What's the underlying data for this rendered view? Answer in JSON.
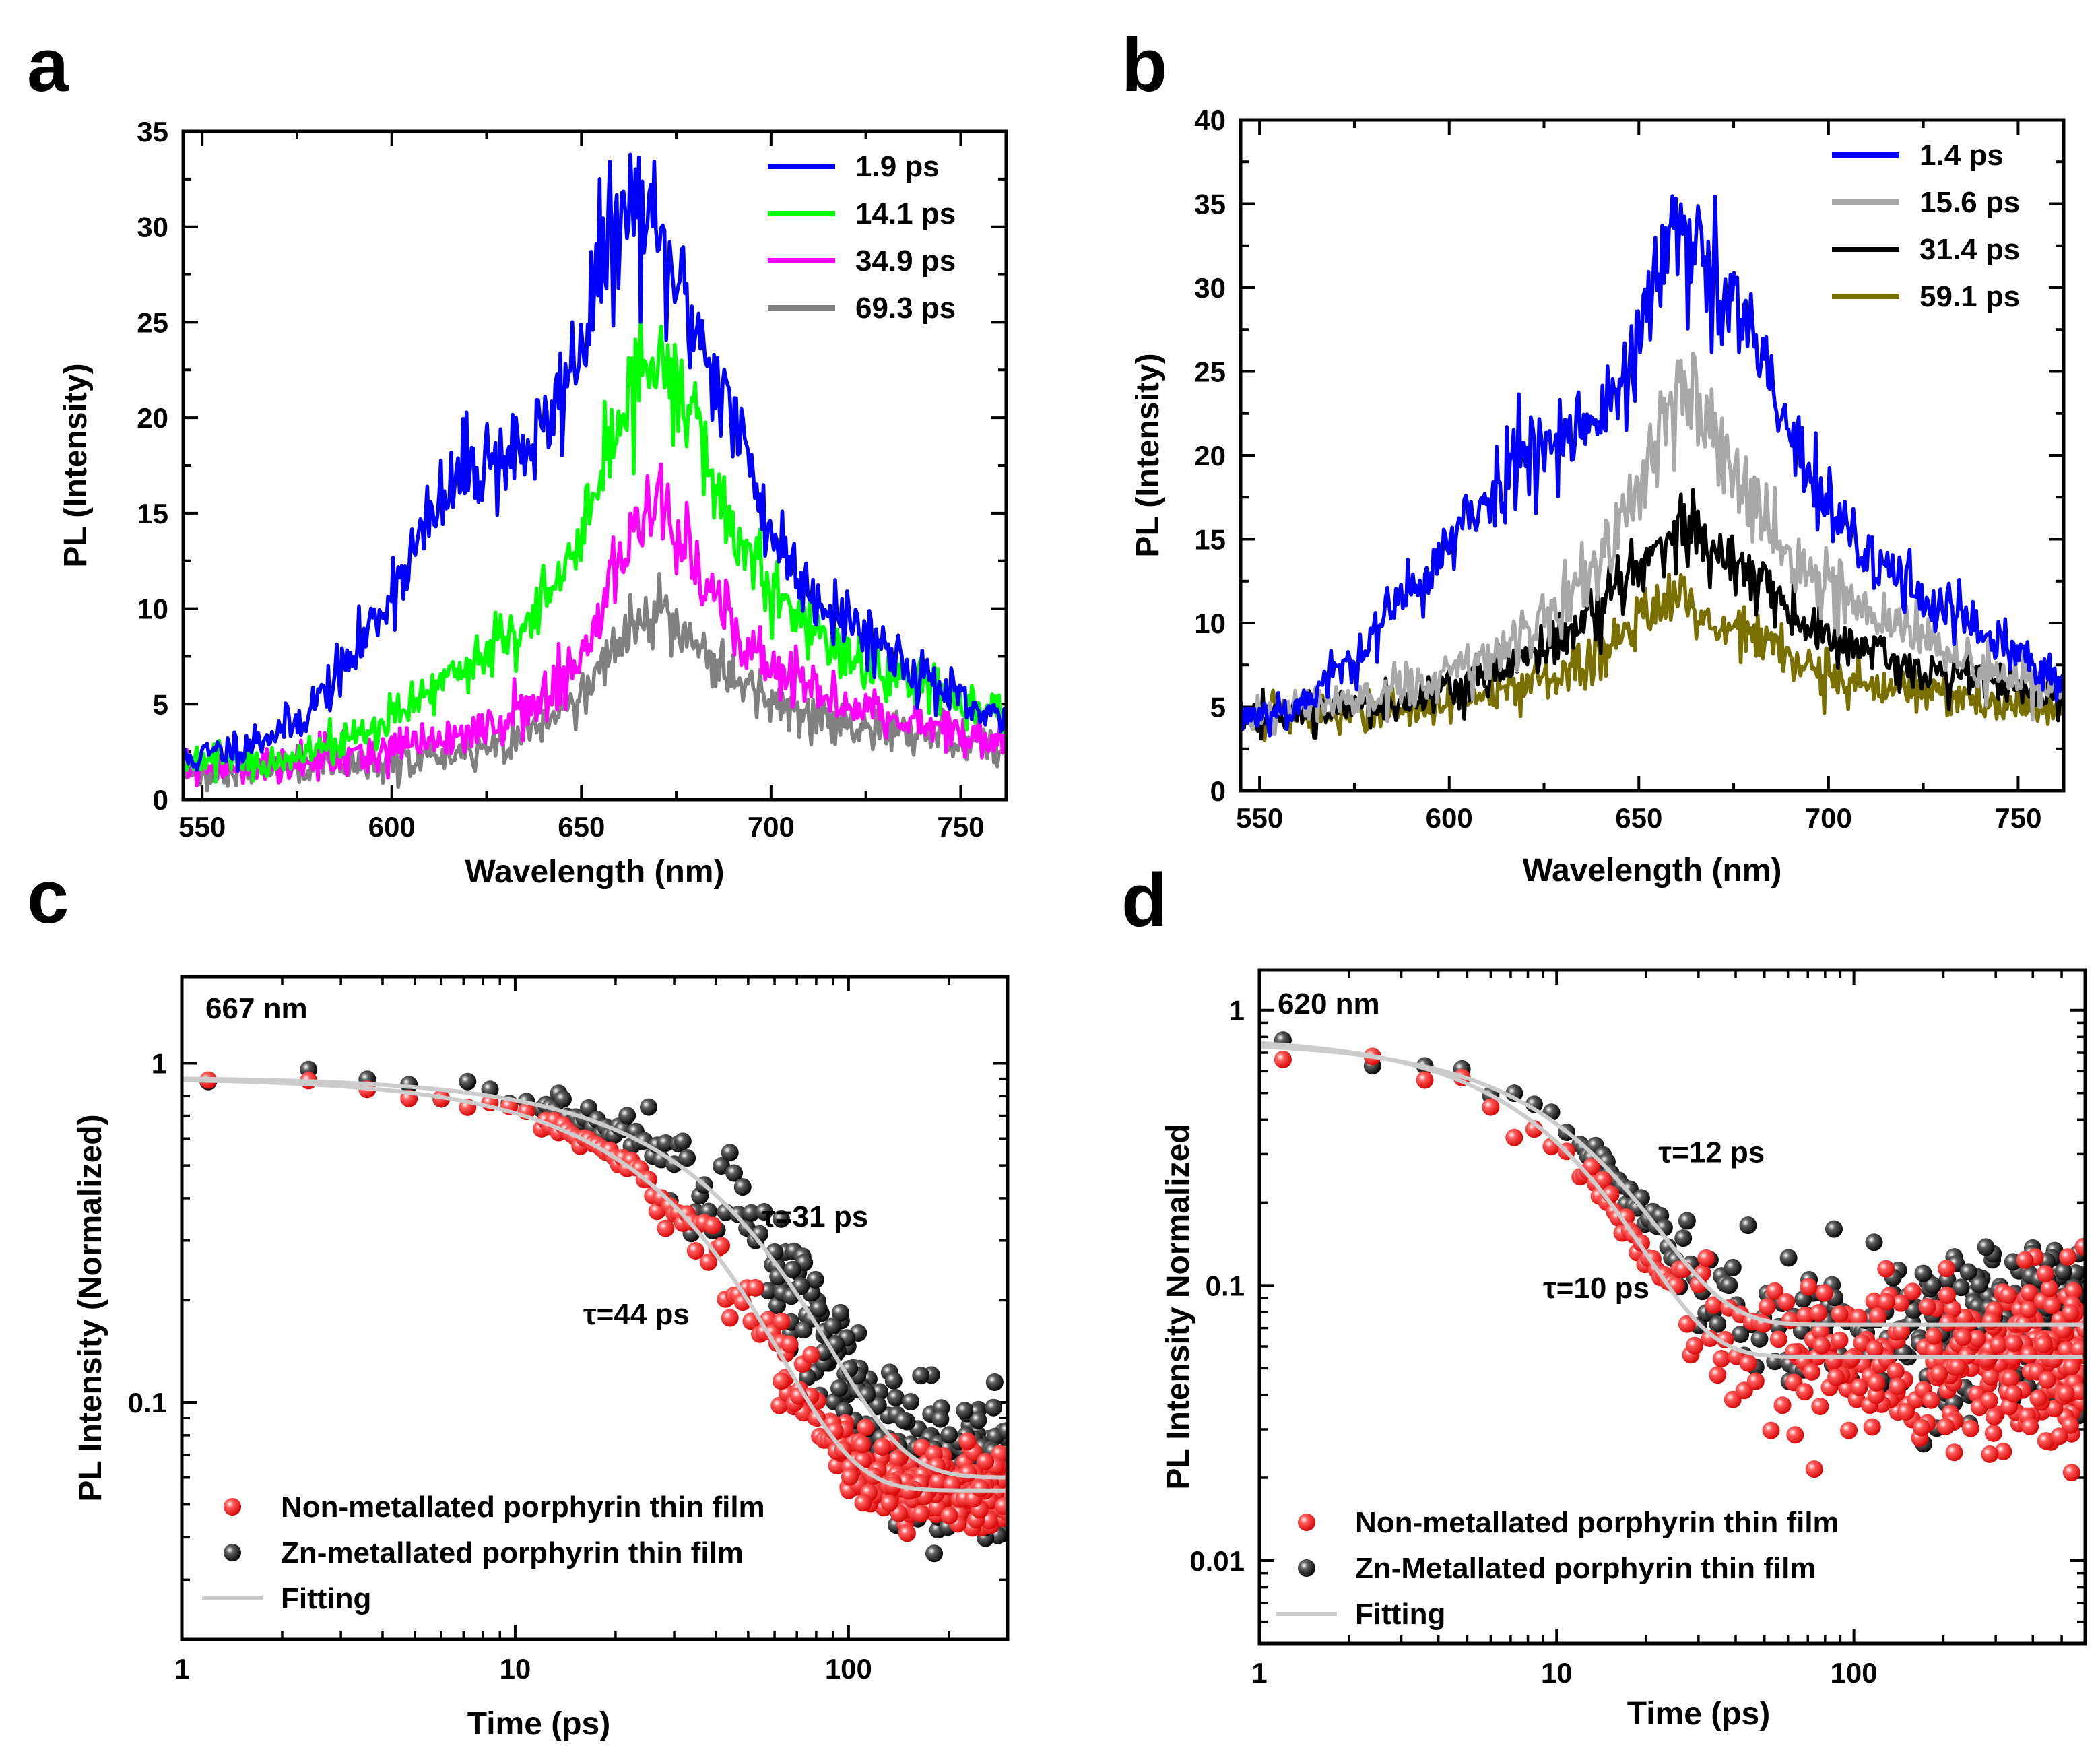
{
  "colors": {
    "blue": "#0000ff",
    "green": "#00ff00",
    "magenta": "#ff00ff",
    "gray": "#808080",
    "lightgray": "#a8a8a8",
    "black": "#000000",
    "olive": "#7a7000",
    "red": "#ff1f1f",
    "fit": "#cccccc"
  },
  "chart_data": [
    {
      "panel": "a",
      "type": "line",
      "xlabel": "Wavelength (nm)",
      "ylabel": "PL (Intensity)",
      "xlim": [
        545,
        762
      ],
      "ylim": [
        0,
        35
      ],
      "xticks": [
        550,
        600,
        650,
        700,
        750
      ],
      "yticks": [
        0,
        5,
        10,
        15,
        20,
        25,
        30,
        35
      ],
      "series": [
        {
          "name": "1.9 ps",
          "color": "#0000ff",
          "x": [
            545,
            560,
            575,
            590,
            600,
            610,
            620,
            630,
            640,
            650,
            655,
            660,
            665,
            670,
            675,
            680,
            690,
            700,
            710,
            720,
            730,
            740,
            750,
            760
          ],
          "y": [
            2,
            2.8,
            4,
            7.5,
            11,
            14.5,
            17.5,
            18,
            19,
            24,
            28,
            30,
            31,
            29,
            27,
            25,
            20,
            14,
            11,
            9.5,
            8,
            6.5,
            5,
            4
          ]
        },
        {
          "name": "14.1 ps",
          "color": "#00ff00",
          "x": [
            545,
            560,
            575,
            590,
            600,
            610,
            620,
            630,
            640,
            650,
            655,
            660,
            665,
            670,
            675,
            680,
            690,
            700,
            710,
            720,
            730,
            740,
            750,
            760
          ],
          "y": [
            2,
            2,
            2.2,
            3.2,
            4.5,
            5.8,
            7,
            8.3,
            10.2,
            13.5,
            16.5,
            19.5,
            22,
            23,
            22,
            19.5,
            14,
            11,
            8.8,
            7.5,
            6.5,
            6,
            5.3,
            4.2
          ]
        },
        {
          "name": "34.9 ps",
          "color": "#ff00ff",
          "x": [
            545,
            560,
            575,
            590,
            600,
            610,
            620,
            630,
            640,
            650,
            655,
            660,
            665,
            670,
            675,
            680,
            690,
            700,
            710,
            720,
            730,
            740,
            750,
            760
          ],
          "y": [
            1.5,
            1.8,
            2,
            2.2,
            2.6,
            3,
            3.4,
            4,
            5,
            7.5,
            10,
            12.5,
            14.5,
            15.5,
            14,
            12,
            9,
            7,
            5.8,
            5,
            4.5,
            4,
            3.6,
            3
          ]
        },
        {
          "name": "69.3 ps",
          "color": "#808080",
          "x": [
            545,
            560,
            575,
            590,
            600,
            610,
            620,
            630,
            640,
            650,
            655,
            660,
            665,
            670,
            675,
            680,
            690,
            700,
            710,
            720,
            730,
            740,
            750,
            760
          ],
          "y": [
            1.5,
            1.6,
            1.7,
            1.8,
            2,
            2.2,
            2.5,
            3,
            3.8,
            5.5,
            7,
            8.3,
            9.2,
            9.4,
            8.8,
            8,
            6.5,
            5.5,
            4.5,
            4,
            3.7,
            3.4,
            3.1,
            2.8
          ]
        }
      ]
    },
    {
      "panel": "b",
      "type": "line",
      "xlabel": "Wavelength (nm)",
      "ylabel": "PL (Intensity)",
      "xlim": [
        545,
        762
      ],
      "ylim": [
        0,
        40
      ],
      "xticks": [
        550,
        600,
        650,
        700,
        750
      ],
      "yticks": [
        0,
        5,
        10,
        15,
        20,
        25,
        30,
        35,
        40
      ],
      "series": [
        {
          "name": "1.4   ps",
          "color": "#0000ff",
          "x": [
            545,
            560,
            575,
            590,
            600,
            610,
            620,
            630,
            640,
            650,
            655,
            660,
            665,
            670,
            680,
            690,
            700,
            710,
            720,
            730,
            740,
            750,
            760
          ],
          "y": [
            4.5,
            5,
            8,
            12,
            14.5,
            17.5,
            20.5,
            21.5,
            22,
            27,
            31,
            33,
            32,
            30,
            27,
            21,
            16.5,
            14,
            12.5,
            11,
            9.5,
            8,
            6.5
          ]
        },
        {
          "name": "15.6 ps",
          "color": "#a8a8a8",
          "x": [
            545,
            560,
            575,
            590,
            600,
            610,
            620,
            630,
            640,
            650,
            655,
            660,
            665,
            670,
            680,
            690,
            700,
            710,
            720,
            730,
            740,
            750,
            760
          ],
          "y": [
            4.5,
            4.8,
            5.5,
            6.3,
            7,
            8,
            9.5,
            11,
            14,
            18,
            21,
            23,
            23.5,
            21.5,
            18,
            14,
            12,
            10.5,
            9.5,
            8.5,
            7.5,
            6.8,
            6
          ]
        },
        {
          "name": "31.4 ps",
          "color": "#000000",
          "x": [
            545,
            560,
            575,
            590,
            600,
            610,
            620,
            630,
            640,
            650,
            655,
            660,
            665,
            670,
            680,
            690,
            700,
            710,
            720,
            730,
            740,
            750,
            760
          ],
          "y": [
            4.5,
            4.6,
            5,
            5.4,
            6,
            6.8,
            7.8,
            9,
            11,
            13.5,
            15,
            15.5,
            15.2,
            14.5,
            12.5,
            10.5,
            9,
            8.2,
            7.5,
            7,
            6.5,
            6,
            5.5
          ]
        },
        {
          "name": "59.1 ps",
          "color": "#7a7000",
          "x": [
            545,
            560,
            575,
            590,
            600,
            610,
            620,
            630,
            640,
            650,
            655,
            660,
            665,
            670,
            680,
            690,
            700,
            710,
            720,
            730,
            740,
            750,
            760
          ],
          "y": [
            4.5,
            4.5,
            4.6,
            4.8,
            5.2,
            5.6,
            6.2,
            7,
            8.2,
            10,
            11,
            11.2,
            10.8,
            10.2,
            9,
            8,
            7,
            6.3,
            6,
            5.6,
            5.3,
            5,
            4.8
          ]
        }
      ]
    },
    {
      "panel": "c",
      "type": "scatter",
      "xlabel": "Time (ps)",
      "ylabel": "PL Intensity (Normalized)",
      "xscale": "log",
      "yscale": "log",
      "xlim": [
        1,
        300
      ],
      "ylim": [
        0.02,
        1.8
      ],
      "xticks": [
        1,
        10,
        100
      ],
      "xticklabels": [
        "1",
        "10",
        "100"
      ],
      "yticks": [
        0.1,
        1
      ],
      "yticklabels": [
        "0.1",
        "1"
      ],
      "wavelength_label": "667 nm",
      "annotations": [
        {
          "text": "τ=31 ps",
          "x": 55,
          "y": 0.33
        },
        {
          "text": "τ=44 ps",
          "x": 16,
          "y": 0.17
        }
      ],
      "series": [
        {
          "name": "Non-metallated porphyrin thin film",
          "marker": "sphere",
          "color": "#ff1f1f",
          "tau_ps": 31,
          "A": 0.85,
          "baseline": 0.055,
          "noise": 0.12
        },
        {
          "name": "Zn-metallated porphyrin thin film",
          "marker": "sphere",
          "color": "#000000",
          "tau_ps": 44,
          "A": 0.85,
          "baseline": 0.06,
          "noise": 0.22
        },
        {
          "name": "Fitting",
          "marker": "line",
          "color": "#cccccc"
        }
      ]
    },
    {
      "panel": "d",
      "type": "scatter",
      "xlabel": "Time (ps)",
      "ylabel": "PL Intensity Normalized",
      "xscale": "log",
      "yscale": "log",
      "xlim": [
        1,
        600
      ],
      "ylim": [
        0.005,
        1.4
      ],
      "xticks": [
        1,
        10,
        100
      ],
      "xticklabels": [
        "1",
        "10",
        "100"
      ],
      "yticks": [
        0.01,
        0.1,
        1
      ],
      "yticklabels": [
        "0.01",
        "0.1",
        "1"
      ],
      "wavelength_label": "620 nm",
      "annotations": [
        {
          "text": "τ=12 ps",
          "x": 22,
          "y": 0.28
        },
        {
          "text": "τ=10 ps",
          "x": 9,
          "y": 0.09
        }
      ],
      "series": [
        {
          "name": "Non-metallated porphyrin thin film",
          "marker": "sphere",
          "color": "#ff1f1f",
          "tau_ps": 10,
          "A": 0.75,
          "baseline": 0.055,
          "noise": 0.35
        },
        {
          "name": "Zn-Metallated porphyrin thin film",
          "marker": "sphere",
          "color": "#000000",
          "tau_ps": 12,
          "A": 0.7,
          "baseline": 0.072,
          "noise": 0.35
        },
        {
          "name": "Fitting",
          "marker": "line",
          "color": "#cccccc"
        }
      ]
    }
  ]
}
